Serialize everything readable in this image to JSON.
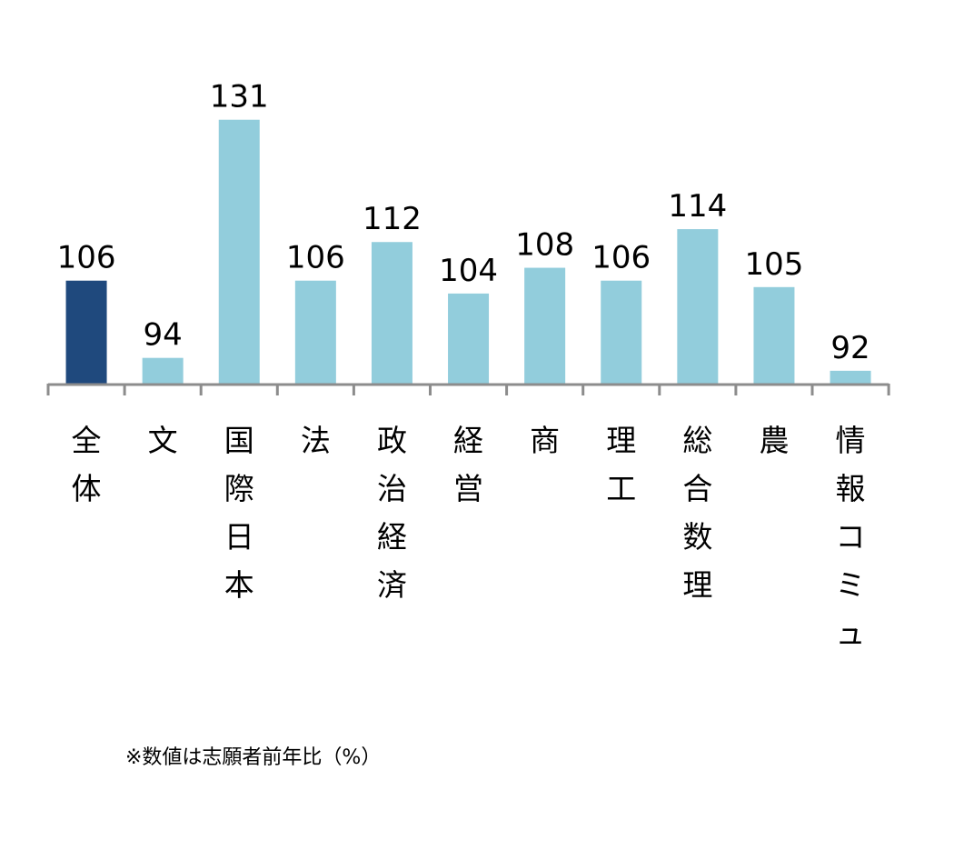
{
  "chart_data": {
    "type": "bar",
    "title": "",
    "xlabel": "",
    "ylabel": "",
    "categories": [
      "全体",
      "文",
      "国際日本",
      "法",
      "政治経済",
      "経営",
      "商",
      "理工",
      "総合数理",
      "農",
      "情報コミュ"
    ],
    "values": [
      106,
      94,
      131,
      106,
      112,
      104,
      108,
      106,
      114,
      105,
      92
    ],
    "ylim": [
      90,
      135
    ],
    "grid": false,
    "highlight_index": 0,
    "colors": {
      "highlight": "#1F497D",
      "bar": "#92CDDC",
      "axis": "#8C8C8C",
      "text": "#000000"
    },
    "note": "※数値は志願者前年比（%）"
  }
}
